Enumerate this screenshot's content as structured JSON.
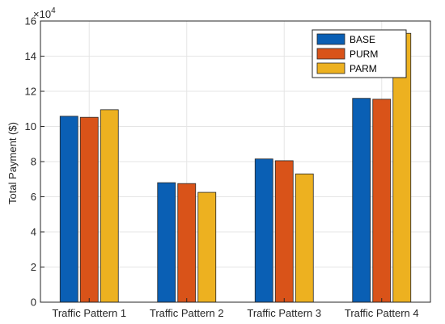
{
  "chart_data": {
    "type": "bar",
    "categories": [
      "Traffic Pattern 1",
      "Traffic Pattern 2",
      "Traffic Pattern 3",
      "Traffic Pattern 4"
    ],
    "series": [
      {
        "name": "BASE",
        "values": [
          105800,
          68000,
          81500,
          116000
        ],
        "color": "#0a5fb4"
      },
      {
        "name": "PURM",
        "values": [
          105200,
          67500,
          80500,
          115500
        ],
        "color": "#d95319"
      },
      {
        "name": "PARM",
        "values": [
          109500,
          62500,
          73000,
          153000
        ],
        "color": "#edb120"
      }
    ],
    "ylabel": "Total Payment ($)",
    "ylim": [
      0,
      160000
    ],
    "yticks": [
      "0",
      "2",
      "4",
      "6",
      "8",
      "10",
      "12",
      "14",
      "16"
    ],
    "y_exponent_label": "×10",
    "y_exponent_power": "4",
    "legend_position": "top-right",
    "grid": true
  }
}
